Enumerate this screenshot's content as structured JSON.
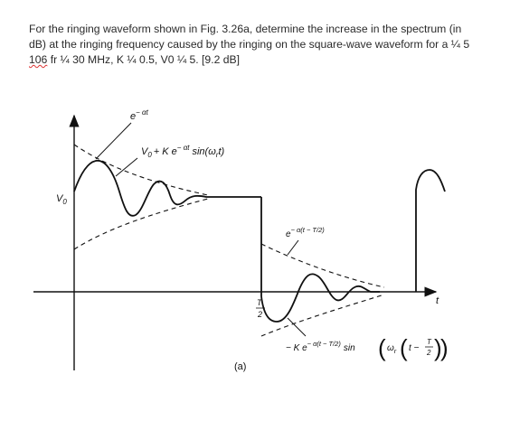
{
  "problem": {
    "line1": "For the ringing waveform shown in Fig. 3.26a, determine the increase in the spectrum (in",
    "line2": "dB) at the ringing frequency caused by the ringing on the square-wave waveform for a ¼ 5",
    "line3_prefix": "106",
    "line3_rest": " fr ¼ 30 MHz, K ¼ 0.5, V0 ¼ 5. [9.2 dB]"
  },
  "figure": {
    "label_envelope_top": "e",
    "label_envelope_top_exp": "− αt",
    "label_signal_main": "V",
    "label_signal_sub": "0",
    "label_signal_rest": "+ K e",
    "label_signal_exp": "− αt",
    "label_signal_fn": "sin(ω",
    "label_signal_fn_sub": "r",
    "label_signal_fn_end": "t)",
    "label_v0": "V",
    "label_v0_sub": "0",
    "label_envelope_mid": "e",
    "label_envelope_mid_exp": "− α(t − T/2)",
    "label_t_half_num": "T",
    "label_t_half_den": "2",
    "label_t_axis": "t",
    "label_bottom_prefix": "− K e",
    "label_bottom_exp": "− α(t − T/2)",
    "label_bottom_sin": "sin",
    "label_bottom_omega": "ω",
    "label_bottom_omega_sub": "r",
    "label_bottom_t": "t −",
    "label_bottom_frac_num": "T",
    "label_bottom_frac_den": "2",
    "caption": "(a)"
  }
}
